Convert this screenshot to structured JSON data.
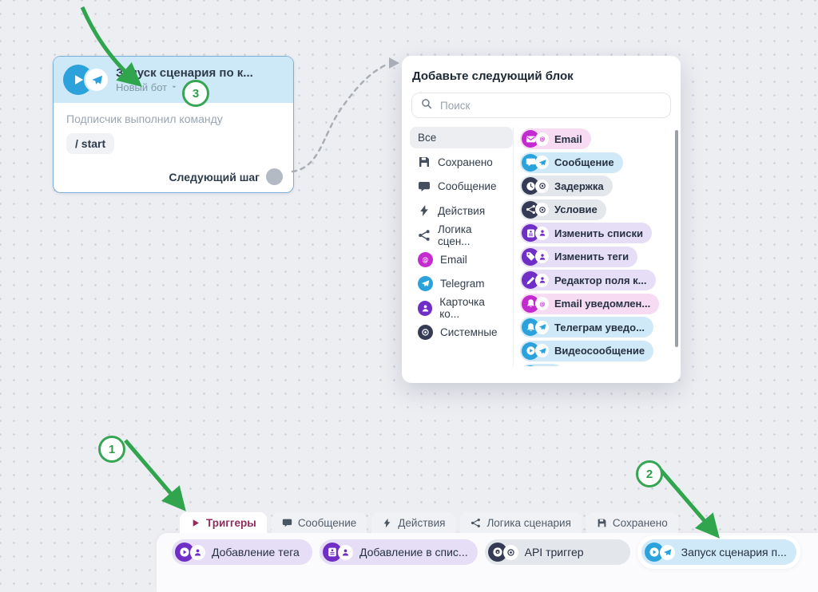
{
  "block": {
    "title": "Запуск сценария по к...",
    "subtitle": "Новый бот",
    "body_label": "Подписчик выполнил команду",
    "command": "/ start",
    "next_step_label": "Следующий шаг",
    "icon": "videoplay",
    "sub_icon": "plane"
  },
  "popup": {
    "title": "Добавьте следующий блок",
    "search_placeholder": "Поиск",
    "categories": [
      {
        "label": "Все",
        "selected": true
      },
      {
        "label": "Сохранено",
        "icon": "save"
      },
      {
        "label": "Сообщение",
        "icon": "bubble"
      },
      {
        "label": "Действия",
        "icon": "lightning"
      },
      {
        "label": "Логика сцен...",
        "icon": "branch"
      },
      {
        "label": "Email",
        "icon": "at",
        "circle": "#c32bd1"
      },
      {
        "label": "Telegram",
        "icon": "plane",
        "circle": "#2ba2dc"
      },
      {
        "label": "Карточка ко...",
        "icon": "person",
        "circle": "#6f2ec6"
      },
      {
        "label": "Системные",
        "icon": "dotcircle",
        "circle": "#363b55"
      }
    ],
    "blocks": [
      {
        "label": "Email",
        "theme": "pink",
        "icon": "envelope",
        "sub": "at"
      },
      {
        "label": "Сообщение",
        "theme": "blue",
        "icon": "bubble",
        "sub": "plane"
      },
      {
        "label": "Задержка",
        "theme": "gray",
        "icon": "clock",
        "sub": "dotcircle"
      },
      {
        "label": "Условие",
        "theme": "gray",
        "icon": "branch",
        "sub": "dotcircle"
      },
      {
        "label": "Изменить списки",
        "theme": "purple",
        "icon": "list",
        "sub": "person"
      },
      {
        "label": "Изменить теги",
        "theme": "purple",
        "icon": "tag",
        "sub": "person"
      },
      {
        "label": "Редактор поля к...",
        "theme": "purple",
        "icon": "pencil",
        "sub": "person"
      },
      {
        "label": "Email уведомлен...",
        "theme": "pink",
        "icon": "bell",
        "sub": "at"
      },
      {
        "label": "Телеграм уведо...",
        "theme": "blue",
        "icon": "bell",
        "sub": "plane"
      },
      {
        "label": "Видеосообщение",
        "theme": "blue",
        "icon": "videoplay",
        "sub": "plane"
      },
      {
        "label": "",
        "theme": "blue",
        "icon": "videoplay",
        "sub": "plane",
        "partial": true
      }
    ]
  },
  "toolbar": {
    "tabs": [
      {
        "label": "Триггеры",
        "icon": "play",
        "active": true
      },
      {
        "label": "Сообщение",
        "icon": "bubble"
      },
      {
        "label": "Действия",
        "icon": "lightning"
      },
      {
        "label": "Логика сценария",
        "icon": "branch"
      },
      {
        "label": "Сохранено",
        "icon": "save"
      }
    ],
    "chips": [
      {
        "label": "Добавление тега",
        "theme": "purple",
        "icon": "videoplay",
        "sub": "person"
      },
      {
        "label": "Добавление в спис...",
        "theme": "purple",
        "icon": "list",
        "sub": "person"
      },
      {
        "label": "API триггер",
        "theme": "gray",
        "icon": "gearcircle",
        "sub": "dotcircle"
      },
      {
        "label": "Запуск сценария п...",
        "theme": "blue",
        "icon": "videoplay",
        "sub": "plane",
        "highlight": true
      }
    ]
  },
  "annotations": {
    "markers": [
      "1",
      "2",
      "3"
    ]
  },
  "colors": {
    "arrow_green": "#31a54e",
    "connector_gray": "#a9aeb6",
    "telegram_blue": "#2ba2dc",
    "magenta": "#c32bd1",
    "violet": "#6f2ec6",
    "navy": "#363b55",
    "block_header": "#cde8f6",
    "active_tab_text": "#8e2d5b",
    "themes": {
      "pink": {
        "bg": "#f7dbf2",
        "main": "#c32bd1"
      },
      "blue": {
        "bg": "#cfe9f8",
        "main": "#2ba2dc"
      },
      "gray": {
        "bg": "#e3e6ea",
        "main": "#363b55"
      },
      "purple": {
        "bg": "#e6def6",
        "main": "#6f2ec6"
      }
    }
  }
}
